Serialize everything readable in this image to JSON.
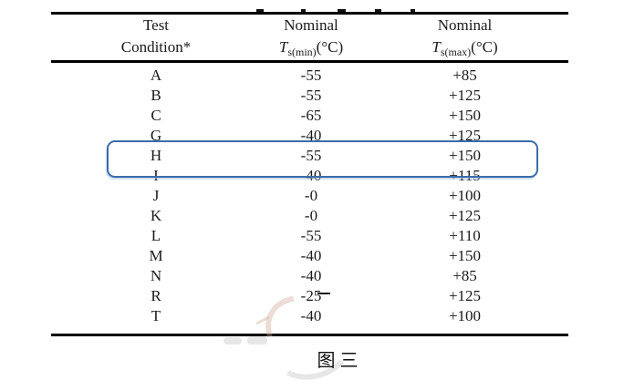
{
  "document": {
    "caption": "图 三"
  },
  "table": {
    "columns": [
      {
        "header_line1": "Test",
        "header_line2": "Condition*"
      },
      {
        "header_line1": "Nominal",
        "symbol": "T",
        "subscript": "s(min)",
        "unit": "(°C)"
      },
      {
        "header_line1": "Nominal",
        "symbol": "T",
        "subscript": "s(max)",
        "unit": "(°C)"
      }
    ],
    "rows": [
      {
        "condition": "A",
        "min": "-55",
        "max": "+85"
      },
      {
        "condition": "B",
        "min": "-55",
        "max": "+125"
      },
      {
        "condition": "C",
        "min": "-65",
        "max": "+150"
      },
      {
        "condition": "G",
        "min": "-40",
        "max": "+125"
      },
      {
        "condition": "H",
        "min": "-55",
        "max": "+150"
      },
      {
        "condition": "I",
        "min": "-40",
        "max": "+115"
      },
      {
        "condition": "J",
        "min": "-0",
        "max": "+100"
      },
      {
        "condition": "K",
        "min": "-0",
        "max": "+125"
      },
      {
        "condition": "L",
        "min": "-55",
        "max": "+110"
      },
      {
        "condition": "M",
        "min": "-40",
        "max": "+150"
      },
      {
        "condition": "N",
        "min": "-40",
        "max": "+85"
      },
      {
        "condition": "R",
        "min": "-25",
        "max": "+125"
      },
      {
        "condition": "T",
        "min": "-40",
        "max": "+100"
      }
    ],
    "highlighted_condition": "H"
  },
  "annotation": {
    "highlight_border_color": "#3b6ca8"
  }
}
